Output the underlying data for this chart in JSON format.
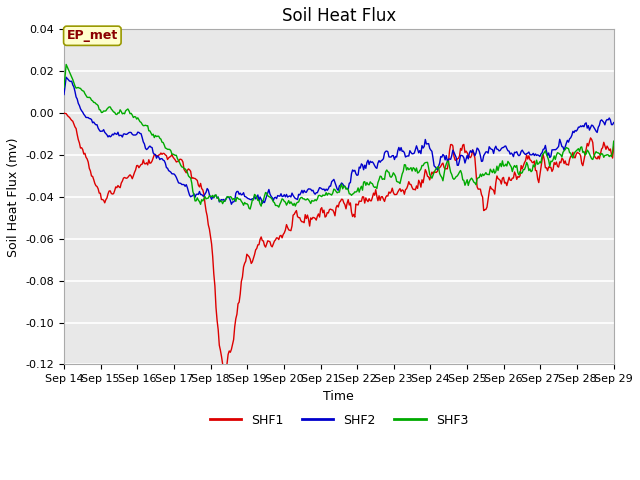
{
  "title": "Soil Heat Flux",
  "xlabel": "Time",
  "ylabel": "Soil Heat Flux (mv)",
  "ylim": [
    -0.12,
    0.04
  ],
  "yticks": [
    -0.12,
    -0.1,
    -0.08,
    -0.06,
    -0.04,
    -0.02,
    0.0,
    0.02,
    0.04
  ],
  "xtick_labels": [
    "Sep 14",
    "Sep 15",
    "Sep 16",
    "Sep 17",
    "Sep 18",
    "Sep 19",
    "Sep 20",
    "Sep 21",
    "Sep 22",
    "Sep 23",
    "Sep 24",
    "Sep 25",
    "Sep 26",
    "Sep 27",
    "Sep 28",
    "Sep 29"
  ],
  "colors": {
    "SHF1": "#dd0000",
    "SHF2": "#0000cc",
    "SHF3": "#00aa00"
  },
  "legend_label": "EP_met",
  "legend_box_facecolor": "#ffffcc",
  "legend_box_edgecolor": "#999900",
  "fig_facecolor": "#ffffff",
  "ax_facecolor": "#e8e8e8",
  "grid_color": "#ffffff",
  "title_fontsize": 12,
  "axis_label_fontsize": 9,
  "tick_fontsize": 8,
  "legend_fontsize": 9,
  "ep_met_fontsize": 9,
  "line_width": 1.0
}
